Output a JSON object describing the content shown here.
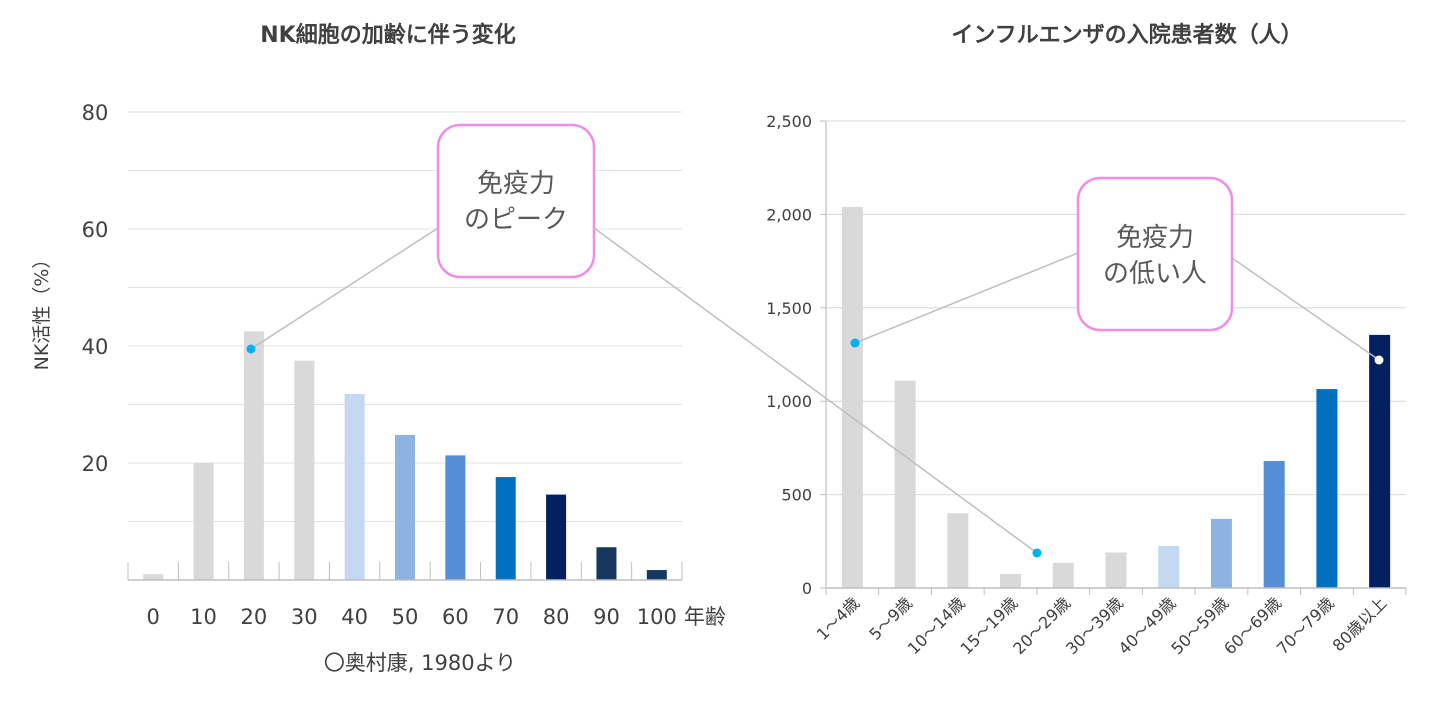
{
  "charts": [
    {
      "type": "bar",
      "title": "NK細胞の加齢に伴う変化",
      "ylabel": "NK活性（%）",
      "xlabel": "年齢",
      "source": "〇奥村康, 1980より",
      "categories": [
        "0",
        "10",
        "20",
        "30",
        "40",
        "50",
        "60",
        "70",
        "80",
        "90",
        "100"
      ],
      "values": [
        1,
        20,
        42.5,
        37.5,
        31.8,
        24.8,
        21.3,
        17.6,
        14.6,
        5.6,
        1.7
      ],
      "colors": [
        "#d9d9d9",
        "#d9d9d9",
        "#d9d9d9",
        "#d9d9d9",
        "#c5d8f2",
        "#8db3e2",
        "#558ed5",
        "#0070c0",
        "#002060",
        "#17375e",
        "#17375e"
      ],
      "ylim": [
        0,
        80
      ],
      "yticks": [
        "20",
        "40",
        "60",
        "80"
      ],
      "grid": true,
      "callout": {
        "text_line1": "免疫力",
        "text_line2": "のピーク"
      }
    },
    {
      "type": "bar",
      "title": "インフルエンザの入院患者数（人）",
      "categories": [
        "1～4歳",
        "5～9歳",
        "10～14歳",
        "15～19歳",
        "20～29歳",
        "30～39歳",
        "40～49歳",
        "50～59歳",
        "60～69歳",
        "70～79歳",
        "80歳以上"
      ],
      "values": [
        2040,
        1110,
        400,
        75,
        135,
        190,
        225,
        370,
        680,
        1065,
        1355
      ],
      "colors": [
        "#d9d9d9",
        "#d9d9d9",
        "#d9d9d9",
        "#d9d9d9",
        "#d9d9d9",
        "#d9d9d9",
        "#c5d8f2",
        "#8db3e2",
        "#558ed5",
        "#0070c0",
        "#002060"
      ],
      "ylim": [
        0,
        2500
      ],
      "yticks": [
        "0",
        "500",
        "1,000",
        "1,500",
        "2,000",
        "2,500"
      ],
      "grid": true,
      "callout": {
        "text_line1": "免疫力",
        "text_line2": "の低い人"
      }
    }
  ]
}
